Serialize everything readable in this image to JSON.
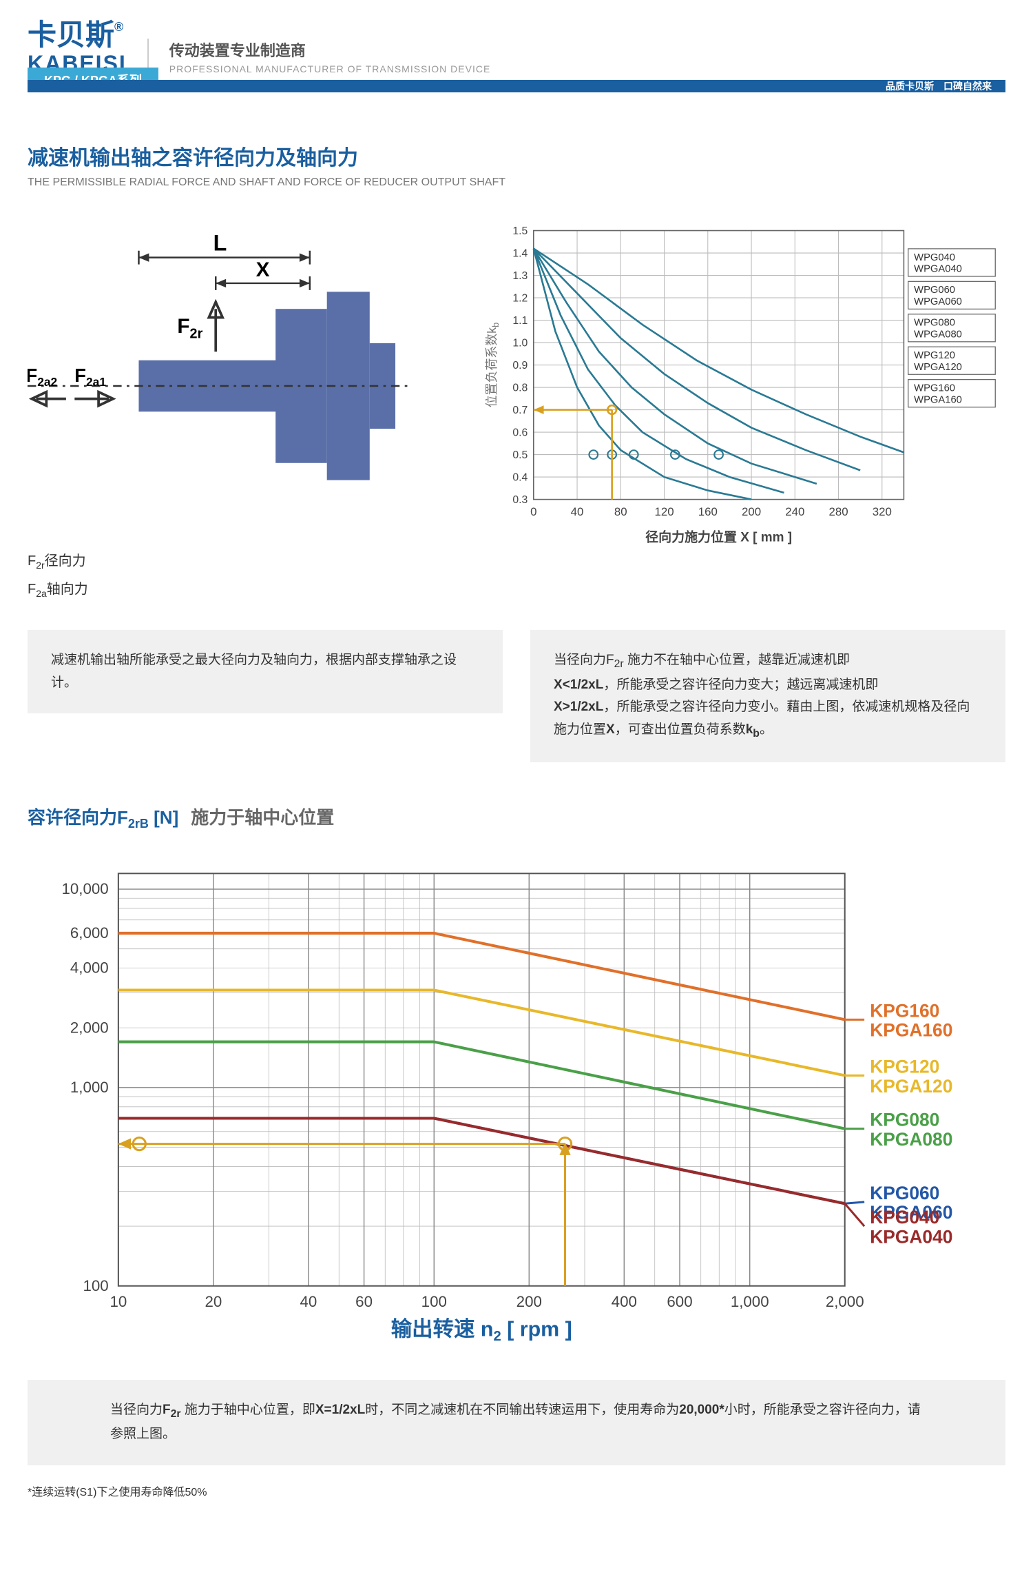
{
  "brand": {
    "cn": "卡贝斯",
    "en": "KABEISI",
    "regmark": "®"
  },
  "tagline": {
    "cn": "传动装置专业制造商",
    "en": "PROFESSIONAL MANUFACTURER OF TRANSMISSION DEVICE"
  },
  "series_tab": "KPG / KPGA系列",
  "band_slogan": "品质卡贝斯　口碑自然来",
  "section_title": {
    "cn": "减速机输出轴之容许径向力及轴向力",
    "en": "THE PERMISSIBLE RADIAL FORCE AND SHAFT AND FORCE  OF  REDUCER OUTPUT SHAFT"
  },
  "shaft_diagram": {
    "labels": {
      "L": "L",
      "X": "X",
      "F2r": "F₂ᵣ",
      "F2a1": "F₂ₐ₁",
      "F2a2": "F₂ₐ₂"
    },
    "legend_radial": "F₂ᵣ径向力",
    "legend_axial": "F₂ₐ轴向力",
    "colors": {
      "body": "#5a6fa8",
      "outline": "#3a4a78"
    }
  },
  "chart1": {
    "type": "line",
    "title_y": "位置负荷系数k b",
    "title_x": "径向力施力位置 X [ mm ]",
    "xlim": [
      0,
      340
    ],
    "ylim": [
      0.3,
      1.5
    ],
    "xticks": [
      0,
      40,
      80,
      120,
      160,
      200,
      240,
      280,
      320
    ],
    "yticks": [
      0.3,
      0.4,
      0.5,
      0.6,
      0.7,
      0.8,
      0.9,
      1.0,
      1.1,
      1.2,
      1.3,
      1.4,
      1.5
    ],
    "marker_y": 0.7,
    "marker_x": 72,
    "grid_color": "#bbbbbb",
    "line_color": "#2a7a94",
    "indicator_color": "#d9a020",
    "series_labels": [
      {
        "l1": "WPG040",
        "l2": "WPGA040"
      },
      {
        "l1": "WPG060",
        "l2": "WPGA060"
      },
      {
        "l1": "WPG080",
        "l2": "WPGA080"
      },
      {
        "l1": "WPG120",
        "l2": "WPGA120"
      },
      {
        "l1": "WPG160",
        "l2": "WPGA160"
      }
    ],
    "curves": [
      [
        [
          0,
          1.42
        ],
        [
          20,
          1.05
        ],
        [
          40,
          0.8
        ],
        [
          60,
          0.63
        ],
        [
          80,
          0.52
        ],
        [
          120,
          0.4
        ],
        [
          160,
          0.34
        ],
        [
          200,
          0.3
        ]
      ],
      [
        [
          0,
          1.42
        ],
        [
          25,
          1.12
        ],
        [
          50,
          0.88
        ],
        [
          75,
          0.72
        ],
        [
          100,
          0.6
        ],
        [
          140,
          0.48
        ],
        [
          180,
          0.4
        ],
        [
          230,
          0.33
        ]
      ],
      [
        [
          0,
          1.42
        ],
        [
          30,
          1.18
        ],
        [
          60,
          0.96
        ],
        [
          90,
          0.8
        ],
        [
          120,
          0.68
        ],
        [
          160,
          0.55
        ],
        [
          200,
          0.46
        ],
        [
          260,
          0.37
        ]
      ],
      [
        [
          0,
          1.42
        ],
        [
          40,
          1.22
        ],
        [
          80,
          1.02
        ],
        [
          120,
          0.86
        ],
        [
          160,
          0.73
        ],
        [
          200,
          0.62
        ],
        [
          250,
          0.52
        ],
        [
          300,
          0.43
        ]
      ],
      [
        [
          0,
          1.42
        ],
        [
          50,
          1.26
        ],
        [
          100,
          1.08
        ],
        [
          150,
          0.92
        ],
        [
          200,
          0.79
        ],
        [
          250,
          0.68
        ],
        [
          300,
          0.58
        ],
        [
          340,
          0.51
        ]
      ]
    ],
    "markers_x": [
      55,
      72,
      92,
      130,
      170
    ]
  },
  "grey_left": "减速机输出轴所能承受之最大径向力及轴向力，根据内部支撑轴承之设计。",
  "grey_right": "当径向力F₂ᵣ 施力不在轴中心位置，越靠近减速机即X<1/2xL，所能承受之容许径向力变大；越远离减速机即X>1/2xL，所能承受之容许径向力变小。藉由上图，依减速机规格及径向施力位置X，可查出位置负荷系数k_b。",
  "chart2_title": {
    "t1": "容许径向力F₂ᵣB  [N]",
    "t2": "施力于轴中心位置"
  },
  "chart2": {
    "type": "line-loglog",
    "xlabel": "输出转速 n₂ [ rpm ]",
    "xlim": [
      10,
      2000
    ],
    "ylim": [
      100,
      12000
    ],
    "xticks": [
      10,
      20,
      40,
      60,
      100,
      200,
      400,
      600,
      1000,
      2000
    ],
    "yticks_major": [
      100,
      1000,
      10000
    ],
    "yticks_extra": [
      2000,
      4000,
      6000
    ],
    "grid_color": "#bbbbbb",
    "indicator_color": "#d9a020",
    "marker_x": 260,
    "marker_y": 520,
    "series": [
      {
        "name": "KPG160",
        "name2": "KPGA160",
        "color": "#e0702a",
        "data": [
          [
            10,
            6000
          ],
          [
            100,
            6000
          ],
          [
            2000,
            2200
          ]
        ]
      },
      {
        "name": "KPG120",
        "name2": "KPGA120",
        "color": "#e8b82a",
        "data": [
          [
            10,
            3100
          ],
          [
            100,
            3100
          ],
          [
            2000,
            1150
          ]
        ]
      },
      {
        "name": "KPG080",
        "name2": "KPGA080",
        "color": "#4aa048",
        "data": [
          [
            10,
            1700
          ],
          [
            100,
            1700
          ],
          [
            2000,
            620
          ]
        ]
      },
      {
        "name": "KPG060",
        "name2": "KPGA060",
        "color": "#2257a8",
        "data": [
          [
            10,
            700
          ],
          [
            100,
            700
          ],
          [
            2000,
            260
          ]
        ]
      },
      {
        "name": "KPG040",
        "name2": "KPGA040",
        "color": "#9a2a2a",
        "data": [
          [
            10,
            700
          ],
          [
            100,
            700
          ],
          [
            2000,
            260
          ]
        ]
      }
    ]
  },
  "grey_bottom": "当径向力F₂ᵣ 施力于轴中心位置，即X=1/2xL时，不同之减速机在不同输出转速运用下，使用寿命为20,000*小时，所能承受之容许径向力，请参照上图。",
  "footnote": "*连续运转(S1)下之使用寿命降低50%"
}
